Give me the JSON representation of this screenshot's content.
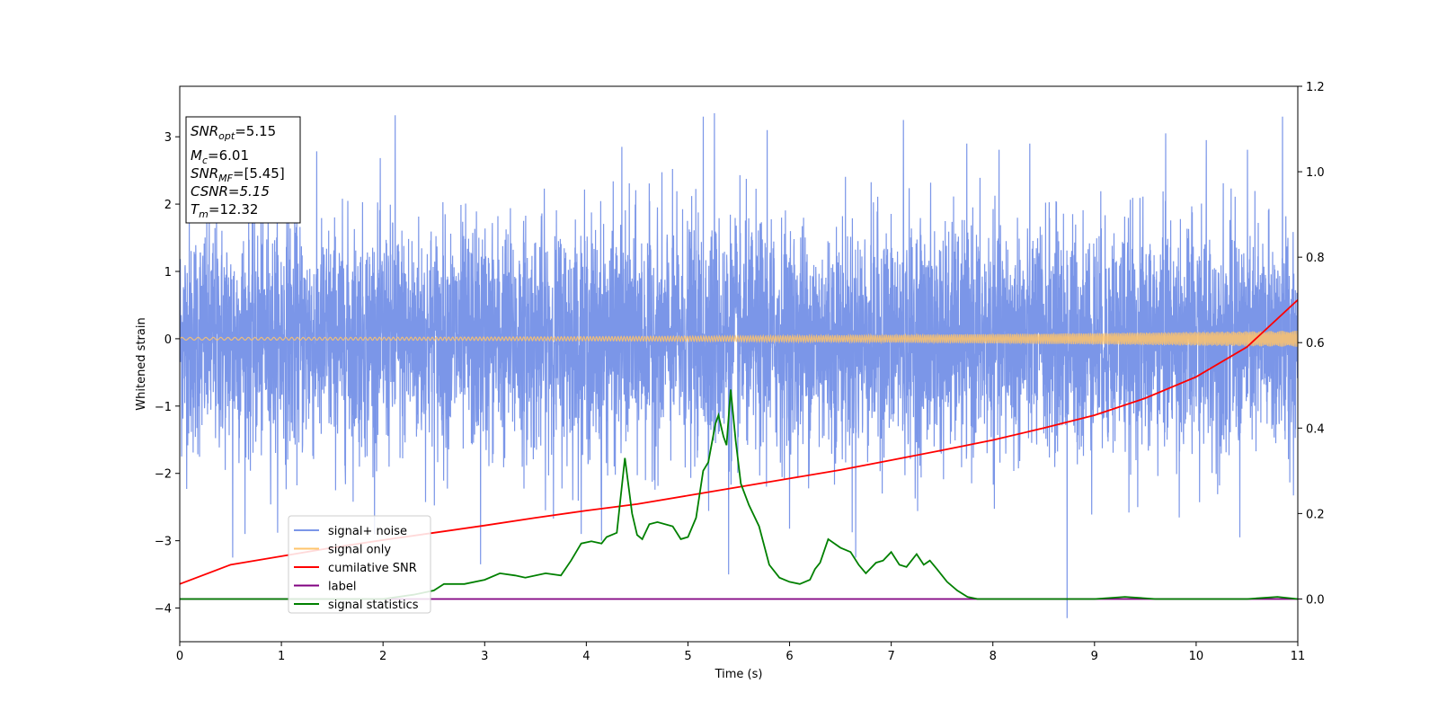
{
  "chart_data": {
    "type": "line",
    "xlabel": "Time (s)",
    "ylabel_left": "Whitened strain",
    "xlim": [
      0,
      11
    ],
    "ylim_left": [
      -4.5,
      3.75
    ],
    "ylim_right": [
      -0.1,
      1.2
    ],
    "x_ticks": [
      0,
      1,
      2,
      3,
      4,
      5,
      6,
      7,
      8,
      9,
      10,
      11
    ],
    "y_ticks_left": [
      -4,
      -3,
      -2,
      -1,
      0,
      1,
      2,
      3
    ],
    "y_ticks_right": [
      0.0,
      0.2,
      0.4,
      0.6,
      0.8,
      1.0,
      1.2
    ],
    "grid": false,
    "legend_position": "lower-left",
    "info_box": {
      "snr_opt": {
        "base": "SNR",
        "sub": "opt",
        "value": "=5.15"
      },
      "mc": {
        "base": "M",
        "sub": "c",
        "value": "=6.01"
      },
      "snr_mf": {
        "base": "SNR",
        "sub": "MF",
        "value": "=[5.45]"
      },
      "csnr": {
        "text": "CSNR=5.15"
      },
      "tm": {
        "base": "T",
        "sub": "m",
        "value": "=12.32"
      }
    },
    "series": [
      {
        "name": "signal+ noise",
        "axis": "left",
        "color": "#7b96e8",
        "kind": "noise",
        "sigma": 1.0,
        "range_x": [
          0,
          11
        ],
        "spikes": [
          [
            0.52,
            -3.25
          ],
          [
            1.07,
            2.15
          ],
          [
            2.12,
            3.32
          ],
          [
            2.96,
            -3.35
          ],
          [
            4.15,
            -3.0
          ],
          [
            4.35,
            2.85
          ],
          [
            5.15,
            3.3
          ],
          [
            5.26,
            3.35
          ],
          [
            5.4,
            -3.5
          ],
          [
            5.78,
            3.1
          ],
          [
            6.65,
            -3.25
          ],
          [
            7.12,
            3.25
          ],
          [
            8.73,
            -4.15
          ],
          [
            9.7,
            3.05
          ],
          [
            10.1,
            2.95
          ],
          [
            10.43,
            -2.95
          ],
          [
            10.85,
            3.3
          ]
        ]
      },
      {
        "name": "signal only",
        "axis": "left",
        "color": "#ffc46b",
        "kind": "chirp",
        "amp_start": 0.02,
        "amp_end": 0.12
      },
      {
        "name": "cumilative SNR",
        "axis": "right",
        "color": "#ff0000",
        "x": [
          0,
          0.5,
          1,
          1.5,
          2,
          2.5,
          3,
          3.5,
          4,
          4.5,
          5,
          5.5,
          6,
          6.5,
          7,
          7.5,
          8,
          8.5,
          9,
          9.5,
          10,
          10.5,
          11
        ],
        "y": [
          0.035,
          0.08,
          0.1,
          0.12,
          0.138,
          0.155,
          0.172,
          0.19,
          0.207,
          0.222,
          0.242,
          0.262,
          0.282,
          0.302,
          0.325,
          0.348,
          0.372,
          0.4,
          0.43,
          0.47,
          0.52,
          0.59,
          0.7
        ]
      },
      {
        "name": "label",
        "axis": "right",
        "color": "#800080",
        "x": [
          0,
          11
        ],
        "y": [
          0.0,
          0.0
        ]
      },
      {
        "name": "signal statistics",
        "axis": "right",
        "color": "#008000",
        "x": [
          0,
          1,
          2,
          2.3,
          2.5,
          2.6,
          2.8,
          3.0,
          3.15,
          3.3,
          3.4,
          3.6,
          3.75,
          3.85,
          3.95,
          4.05,
          4.15,
          4.2,
          4.3,
          4.38,
          4.45,
          4.5,
          4.55,
          4.62,
          4.7,
          4.85,
          4.93,
          5.0,
          5.08,
          5.15,
          5.2,
          5.27,
          5.3,
          5.35,
          5.38,
          5.42,
          5.47,
          5.52,
          5.6,
          5.7,
          5.8,
          5.9,
          6.0,
          6.1,
          6.2,
          6.25,
          6.3,
          6.38,
          6.5,
          6.6,
          6.68,
          6.75,
          6.85,
          6.92,
          7.0,
          7.08,
          7.15,
          7.25,
          7.32,
          7.38,
          7.45,
          7.55,
          7.65,
          7.75,
          7.85,
          8.0,
          8.5,
          9.0,
          9.3,
          9.6,
          10.0,
          10.5,
          10.8,
          11.0
        ],
        "y": [
          0.0,
          0.0,
          0.0,
          0.01,
          0.02,
          0.035,
          0.035,
          0.045,
          0.06,
          0.055,
          0.05,
          0.06,
          0.055,
          0.09,
          0.13,
          0.135,
          0.13,
          0.145,
          0.155,
          0.33,
          0.2,
          0.15,
          0.14,
          0.175,
          0.18,
          0.17,
          0.14,
          0.145,
          0.19,
          0.3,
          0.32,
          0.41,
          0.43,
          0.38,
          0.36,
          0.49,
          0.37,
          0.27,
          0.22,
          0.17,
          0.08,
          0.05,
          0.04,
          0.035,
          0.045,
          0.07,
          0.085,
          0.14,
          0.12,
          0.11,
          0.08,
          0.06,
          0.085,
          0.09,
          0.11,
          0.08,
          0.075,
          0.105,
          0.08,
          0.09,
          0.07,
          0.04,
          0.02,
          0.005,
          0.0,
          0.0,
          0.0,
          0.0,
          0.005,
          0.0,
          0.0,
          0.0,
          0.005,
          0.0
        ]
      }
    ]
  }
}
